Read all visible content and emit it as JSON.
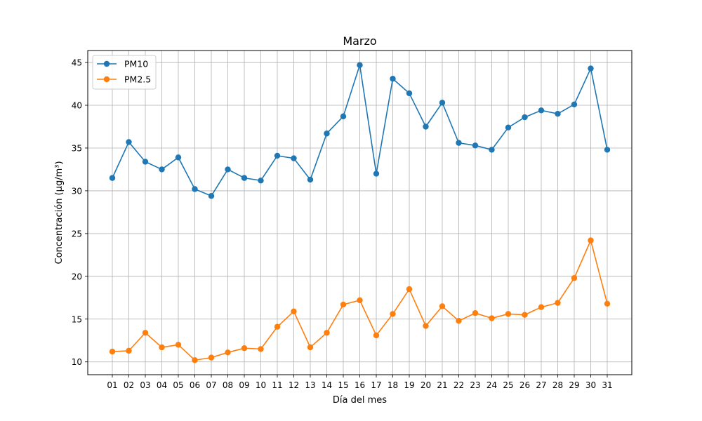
{
  "chart_data": {
    "type": "line",
    "title": "Marzo",
    "xlabel": "Día del mes",
    "ylabel": "Concentración (µg/m³)",
    "categories": [
      "01",
      "02",
      "03",
      "04",
      "05",
      "06",
      "07",
      "08",
      "09",
      "10",
      "11",
      "12",
      "13",
      "14",
      "15",
      "16",
      "17",
      "18",
      "19",
      "20",
      "21",
      "22",
      "23",
      "24",
      "25",
      "26",
      "27",
      "28",
      "29",
      "30",
      "31"
    ],
    "series": [
      {
        "name": "PM10",
        "color": "#1f77b4",
        "values": [
          31.5,
          35.7,
          33.4,
          32.5,
          33.9,
          30.2,
          29.4,
          32.5,
          31.5,
          31.2,
          34.1,
          33.8,
          31.3,
          36.7,
          38.7,
          44.7,
          32.0,
          43.1,
          41.4,
          37.5,
          40.3,
          35.6,
          35.3,
          34.8,
          37.4,
          38.6,
          39.4,
          39.0,
          40.1,
          44.3,
          34.8
        ]
      },
      {
        "name": "PM2.5",
        "color": "#ff7f0e",
        "values": [
          11.2,
          11.3,
          13.4,
          11.7,
          12.0,
          10.2,
          10.5,
          11.1,
          11.6,
          11.5,
          14.1,
          15.9,
          11.7,
          13.4,
          16.7,
          17.2,
          13.1,
          15.6,
          18.5,
          14.2,
          16.5,
          14.8,
          15.7,
          15.1,
          15.6,
          15.5,
          16.4,
          16.9,
          19.8,
          24.2,
          16.8
        ]
      }
    ],
    "yticks": [
      10,
      15,
      20,
      25,
      30,
      35,
      40,
      45
    ],
    "ylim": [
      8.5,
      46.4
    ],
    "grid": true,
    "legend": "top-left"
  }
}
